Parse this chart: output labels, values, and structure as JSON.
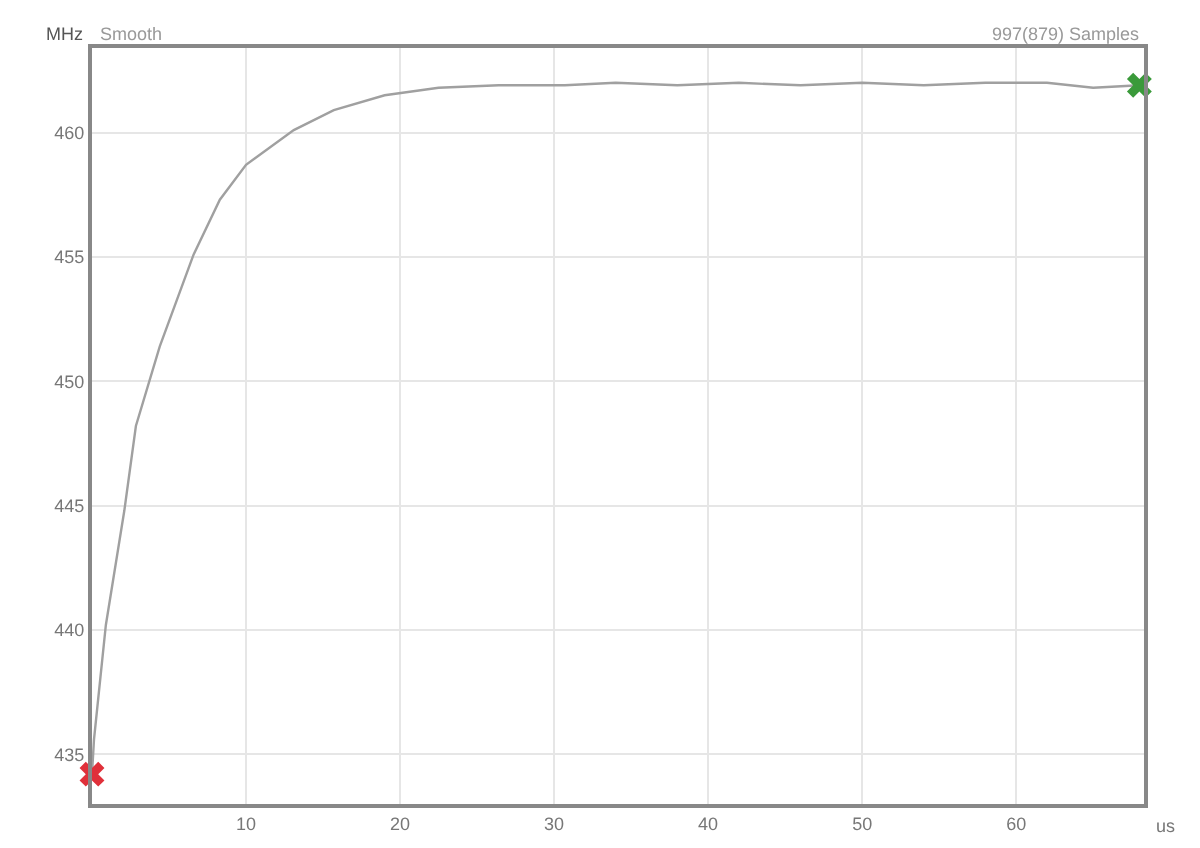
{
  "chart_data": {
    "type": "line",
    "subtitle": "Smooth",
    "ylabel": "MHz",
    "xlabel": "us",
    "annotations": [
      "997(879) Samples"
    ],
    "xlim": [
      0,
      68.3
    ],
    "ylim": [
      433,
      463.4
    ],
    "xticks": [
      10,
      20,
      30,
      40,
      50,
      60
    ],
    "yticks": [
      435,
      440,
      445,
      450,
      455,
      460
    ],
    "grid": true,
    "line_style": "solid",
    "marker": "none",
    "series": [
      {
        "color": "#a0a0a0",
        "x": [
          0,
          0.13,
          0.9,
          2.1,
          2.85,
          4.4,
          6.6,
          8.3,
          10,
          13.1,
          15.7,
          19,
          22.5,
          26.4,
          30.7,
          34,
          38,
          42,
          46,
          50,
          54,
          58,
          62,
          65,
          68
        ],
        "values": [
          434.2,
          435.6,
          440.2,
          444.8,
          448.2,
          451.4,
          455.1,
          457.3,
          458.7,
          460.1,
          460.9,
          461.5,
          461.8,
          461.9,
          461.9,
          462,
          461.9,
          462,
          461.9,
          462,
          461.9,
          462,
          462,
          461.8,
          461.9
        ]
      },
      {
        "type": "scatter",
        "marker": "cross",
        "color": "#e0303a",
        "x": [
          0
        ],
        "values": [
          434.2
        ]
      },
      {
        "type": "scatter",
        "marker": "cross",
        "color": "#3a9a3a",
        "x": [
          68
        ],
        "values": [
          461.9
        ]
      }
    ]
  }
}
